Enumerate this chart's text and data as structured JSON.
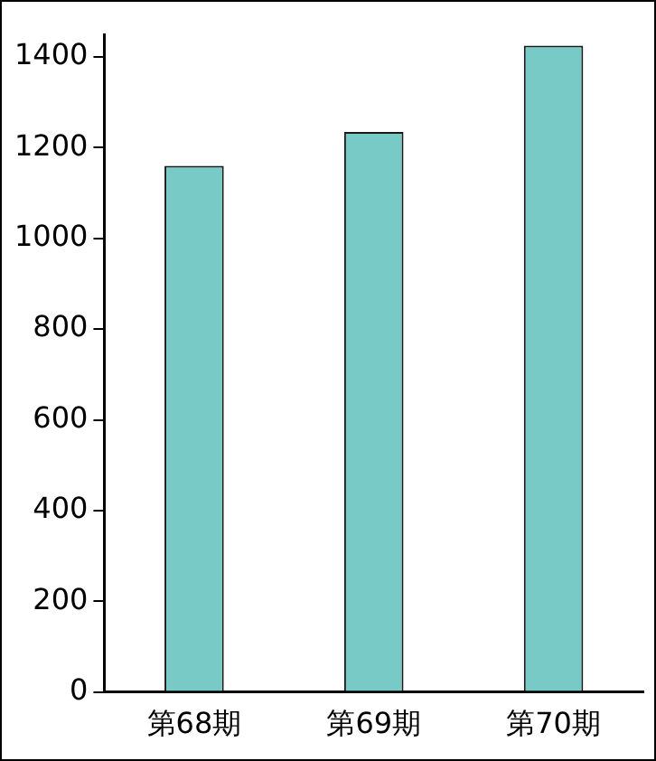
{
  "chart_data": {
    "type": "bar",
    "categories": [
      "第68期",
      "第69期",
      "第70期"
    ],
    "values": [
      1160,
      1235,
      1425
    ],
    "color": "#77cac6",
    "ylim": [
      0,
      1450
    ],
    "yticks": [
      0,
      200,
      400,
      600,
      800,
      1000,
      1200,
      1400
    ],
    "grid": false
  }
}
